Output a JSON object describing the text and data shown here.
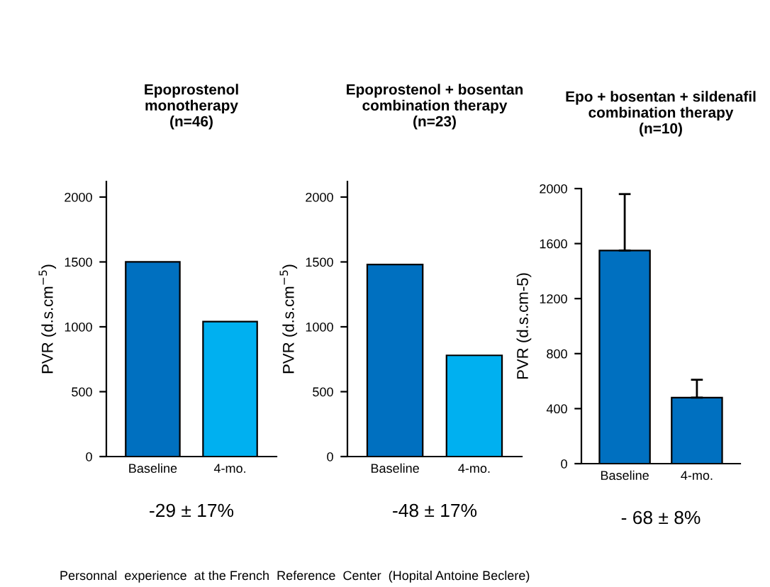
{
  "chart_data": [
    {
      "type": "bar",
      "title": "Epoprostenol\nmonotherapy\n(n=46)",
      "ylabel": "PVR (d.s.cm$^{−5}$)",
      "categories": [
        "Baseline",
        "4-mo."
      ],
      "values": [
        1500,
        1040
      ],
      "colors": [
        "#0070c0",
        "#00b0f0"
      ],
      "ylim": [
        0,
        2120
      ],
      "yticks": [
        0,
        500,
        1000,
        1500,
        2000
      ],
      "grid": false,
      "annotations": [
        "-29 ± 17%"
      ]
    },
    {
      "type": "bar",
      "title": "Epoprostenol + bosentan\ncombination therapy\n(n=23)",
      "ylabel": "PVR (d.s.cm$^{−5}$)",
      "categories": [
        "Baseline",
        "4-mo."
      ],
      "values": [
        1480,
        780
      ],
      "colors": [
        "#0070c0",
        "#00b0f0"
      ],
      "ylim": [
        0,
        2120
      ],
      "yticks": [
        0,
        500,
        1000,
        1500,
        2000
      ],
      "grid": false,
      "annotations": [
        "-48 ± 17%"
      ]
    },
    {
      "type": "bar",
      "title": "Epo + bosentan + sildenafil\ncombination therapy\n(n=10)",
      "ylabel": "PVR (d.s.cm-5)",
      "categories": [
        "Baseline",
        "4-mo."
      ],
      "values": [
        1550,
        480
      ],
      "errors": [
        [
          1550,
          1960
        ],
        [
          480,
          610
        ]
      ],
      "colors": [
        "#0070c0",
        "#0070c0"
      ],
      "ylim": [
        0,
        2000
      ],
      "yticks": [
        0,
        400,
        800,
        1200,
        1600,
        2000
      ],
      "grid": false,
      "annotations": [
        "- 68 ± 8%",
        "Personnal  experience  at the French  Reference  Center  (Hopital Antoine Beclere)"
      ]
    }
  ]
}
